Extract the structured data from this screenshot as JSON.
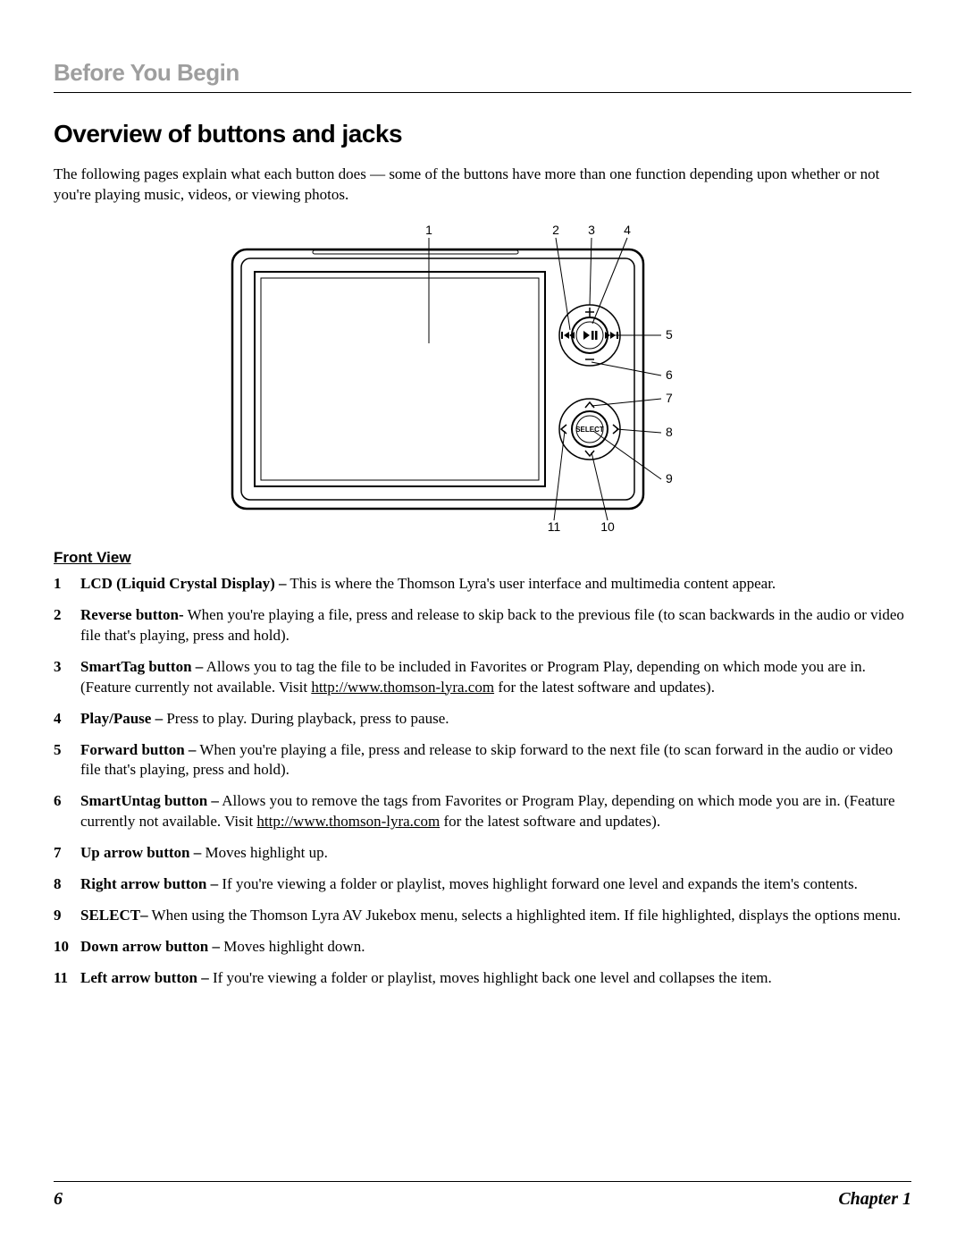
{
  "breadcrumb": "Before You Begin",
  "section_title": "Overview of buttons and jacks",
  "intro": "The following pages explain what each button does — some of the buttons have more than one function depending upon whether or not you're playing music, videos, or viewing photos.",
  "diagram": {
    "callout_labels": [
      "1",
      "2",
      "3",
      "4",
      "5",
      "6",
      "7",
      "8",
      "9",
      "10",
      "11"
    ],
    "select_label": "SELECT",
    "font_family": "Arial, sans-serif",
    "font_size": 14,
    "stroke": "#000000",
    "background": "#ffffff"
  },
  "subhead": "Front View",
  "url": "http://www.thomson-lyra.com",
  "items": [
    {
      "term": "LCD (Liquid Crystal Display) –",
      "desc": " This is where the Thomson Lyra's user interface and multimedia content appear."
    },
    {
      "term": "Reverse button-",
      "desc": " When you're playing a file, press and release to skip back to the previous file (to scan backwards in the audio or video file that's playing, press and hold)."
    },
    {
      "term": "SmartTag button –",
      "desc": " Allows you to tag the file to be included in Favorites or Program Play, depending on which mode you are in. (Feature currently not available. Visit ",
      "url_after": " for the latest software and updates).",
      "has_url": true
    },
    {
      "term": "Play/Pause –",
      "desc": " Press to play. During playback, press to pause."
    },
    {
      "term": "Forward button –",
      "desc": " When you're playing a file, press and release to skip forward to the next file (to scan forward in the audio or video file that's playing, press and hold)."
    },
    {
      "term": "SmartUntag button –",
      "desc": " Allows you to remove the tags from Favorites or Program Play, depending on which mode you are in. (Feature currently not available. Visit ",
      "url_after": " for the latest software and updates).",
      "has_url": true
    },
    {
      "term": "Up arrow button –",
      "desc": " Moves highlight up."
    },
    {
      "term": "Right arrow button –",
      "desc": " If you're viewing a folder or playlist, moves highlight forward one level and expands the item's contents."
    },
    {
      "term": "SELECT–",
      "desc": " When using the Thomson Lyra AV Jukebox menu, selects a highlighted item. If file highlighted, displays the options menu."
    },
    {
      "term": "Down arrow button –",
      "desc": " Moves highlight down."
    },
    {
      "term": "Left arrow button –",
      "desc": " If you're viewing a folder or playlist, moves highlight back one level and collapses the item."
    }
  ],
  "footer": {
    "page": "6",
    "chapter": "Chapter 1"
  }
}
